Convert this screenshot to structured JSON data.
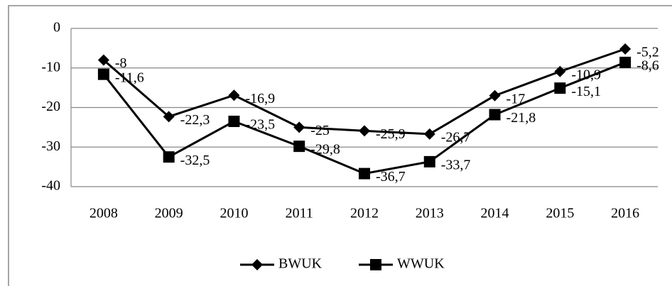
{
  "chart_data": {
    "type": "line",
    "categories": [
      "2008",
      "2009",
      "2010",
      "2011",
      "2012",
      "2013",
      "2014",
      "2015",
      "2016"
    ],
    "series": [
      {
        "name": "BWUK",
        "color": "#000000",
        "marker": "diamond",
        "values": [
          -8,
          -22.3,
          -16.9,
          -25,
          -25.9,
          -26.7,
          -17,
          -10.9,
          -5.2
        ],
        "value_labels": [
          "-8",
          "-22,3",
          "-16,9",
          "-25",
          "-25,9",
          "-26,7",
          "-17",
          "-10,9",
          "-5,2"
        ]
      },
      {
        "name": "WWUK",
        "color": "#000000",
        "marker": "square",
        "values": [
          -11.6,
          -32.5,
          -23.5,
          -29.8,
          -36.7,
          -33.7,
          -21.8,
          -15.1,
          -8.6
        ],
        "value_labels": [
          "-11,6",
          "-32,5",
          "-23,5",
          "-29,8",
          "-36,7",
          "-33,7",
          "-21,8",
          "-15,1",
          "-8,6"
        ]
      }
    ],
    "ylim": [
      -40,
      0
    ],
    "yticks": [
      0,
      -10,
      -20,
      -30,
      -40
    ],
    "grid": true,
    "legend": "bottom"
  }
}
